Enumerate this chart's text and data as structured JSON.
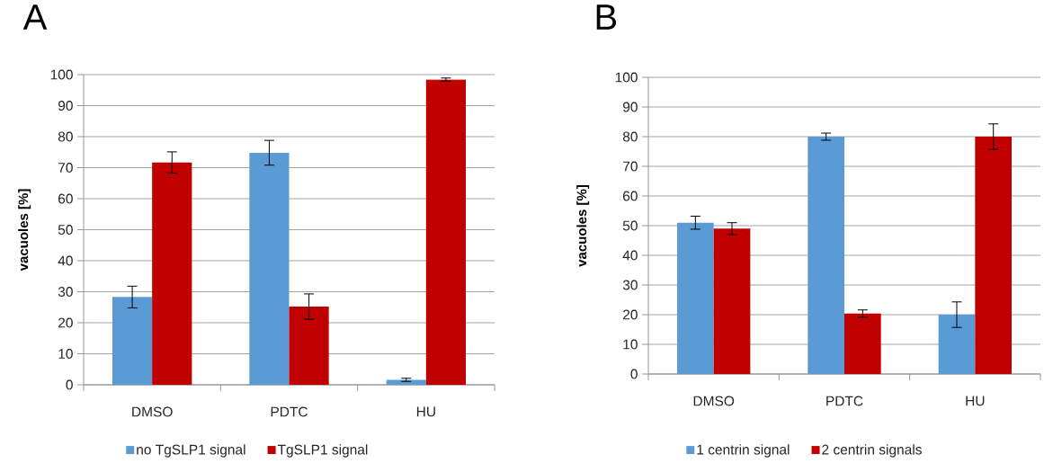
{
  "chart_data": [
    {
      "type": "bar",
      "title": "A",
      "ylabel": "vacuoles [%]",
      "categories": [
        "DMSO",
        "PDTC",
        "HU"
      ],
      "series": [
        {
          "name": "no TgSLP1 signal",
          "color": "#5b9bd5",
          "values": [
            28.3,
            74.8,
            1.6
          ],
          "errors": [
            3.5,
            4,
            0.5
          ]
        },
        {
          "name": "TgSLP1 signal",
          "color": "#c00000",
          "values": [
            71.7,
            25.2,
            98.4
          ],
          "errors": [
            3.4,
            4.1,
            0.5
          ]
        }
      ],
      "ylim": [
        0,
        100
      ],
      "yticks": [
        0,
        10,
        20,
        30,
        40,
        50,
        60,
        70,
        80,
        90,
        100
      ],
      "grid": "y",
      "legend": "bottom"
    },
    {
      "type": "bar",
      "title": "B",
      "ylabel": "vacuoles [%]",
      "categories": [
        "DMSO",
        "PDTC",
        "HU"
      ],
      "series": [
        {
          "name": "1 centrin signal",
          "color": "#5b9bd5",
          "values": [
            51,
            80,
            20
          ],
          "errors": [
            2.2,
            1.2,
            4.3
          ]
        },
        {
          "name": "2 centrin signals",
          "color": "#c00000",
          "values": [
            49,
            20.4,
            80
          ],
          "errors": [
            2,
            1.2,
            4.3
          ]
        }
      ],
      "ylim": [
        0,
        100
      ],
      "yticks": [
        0,
        10,
        20,
        30,
        40,
        50,
        60,
        70,
        80,
        90,
        100
      ],
      "grid": "y",
      "legend": "bottom"
    }
  ]
}
